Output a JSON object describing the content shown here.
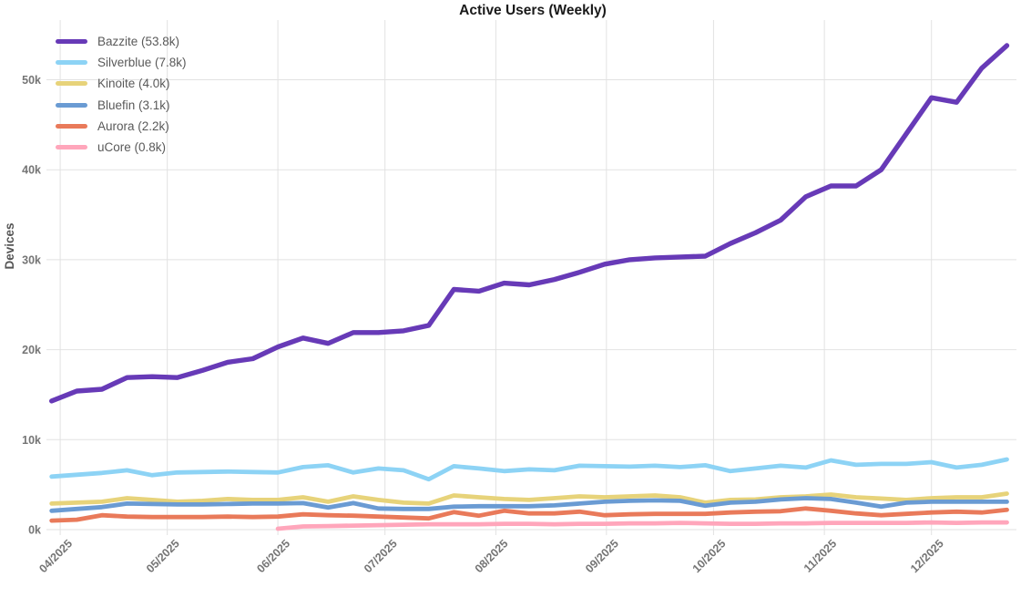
{
  "chart_data": {
    "type": "line",
    "title": "Active Users (Weekly)",
    "xlabel": "",
    "ylabel": "Devices",
    "frequency": "weekly",
    "grid": true,
    "legend_position": "top-left",
    "ylim": [
      0,
      56
    ],
    "y_ticks": [
      "0k",
      "10k",
      "20k",
      "30k",
      "40k",
      "50k"
    ],
    "y_tick_values": [
      0,
      10,
      20,
      30,
      40,
      50
    ],
    "x_ticks": [
      "04/2025",
      "05/2025",
      "06/2025",
      "07/2025",
      "08/2025",
      "09/2025",
      "10/2025",
      "11/2025",
      "12/2025"
    ],
    "x_tick_week_positions": [
      0.34,
      4.6,
      9.0,
      13.26,
      17.67,
      22.07,
      26.33,
      30.74,
      35.0
    ],
    "n_points": 39,
    "units": "thousands of devices",
    "series": [
      {
        "name": "Bazzite",
        "legend_label": "Bazzite (53.8k)",
        "final_value": "53.8k",
        "color": "#673ab7",
        "z": 6,
        "values": [
          14.3,
          15.4,
          15.6,
          16.9,
          17.0,
          16.9,
          17.7,
          18.6,
          19.0,
          20.3,
          21.3,
          20.7,
          21.9,
          21.9,
          22.1,
          22.7,
          26.7,
          26.5,
          27.4,
          27.2,
          27.8,
          28.6,
          29.5,
          30.0,
          30.2,
          30.3,
          30.4,
          31.8,
          33.0,
          34.4,
          37.0,
          38.2,
          38.2,
          40.0,
          44.0,
          48.0,
          47.5,
          51.3,
          53.8
        ]
      },
      {
        "name": "Silverblue",
        "legend_label": "Silverblue (7.8k)",
        "final_value": "7.8k",
        "color": "#8dd3f5",
        "z": 5,
        "values": [
          5.9,
          6.1,
          6.3,
          6.6,
          6.05,
          6.35,
          6.4,
          6.45,
          6.4,
          6.35,
          6.95,
          7.15,
          6.35,
          6.8,
          6.6,
          5.6,
          7.05,
          6.8,
          6.5,
          6.7,
          6.6,
          7.1,
          7.05,
          7.0,
          7.1,
          6.95,
          7.15,
          6.5,
          6.8,
          7.1,
          6.9,
          7.7,
          7.2,
          7.3,
          7.3,
          7.5,
          6.9,
          7.2,
          7.8
        ]
      },
      {
        "name": "Kinoite",
        "legend_label": "Kinoite (4.0k)",
        "final_value": "4.0k",
        "color": "#e7d37a",
        "z": 3,
        "values": [
          2.9,
          3.0,
          3.1,
          3.5,
          3.3,
          3.1,
          3.2,
          3.4,
          3.3,
          3.3,
          3.6,
          3.1,
          3.7,
          3.3,
          3.0,
          2.9,
          3.8,
          3.6,
          3.4,
          3.3,
          3.5,
          3.7,
          3.6,
          3.7,
          3.8,
          3.6,
          3.0,
          3.3,
          3.35,
          3.6,
          3.7,
          3.9,
          3.6,
          3.45,
          3.3,
          3.5,
          3.6,
          3.6,
          4.0
        ]
      },
      {
        "name": "Bluefin",
        "legend_label": "Bluefin (3.1k)",
        "final_value": "3.1k",
        "color": "#6a9bd3",
        "z": 4,
        "values": [
          2.1,
          2.3,
          2.5,
          2.9,
          2.85,
          2.8,
          2.8,
          2.85,
          2.9,
          2.9,
          2.95,
          2.45,
          2.95,
          2.35,
          2.3,
          2.3,
          2.55,
          2.6,
          2.6,
          2.6,
          2.7,
          2.9,
          3.1,
          3.2,
          3.25,
          3.2,
          2.65,
          3.0,
          3.1,
          3.35,
          3.5,
          3.4,
          3.0,
          2.55,
          3.0,
          3.1,
          3.1,
          3.1,
          3.1
        ]
      },
      {
        "name": "Aurora",
        "legend_label": "Aurora (2.2k)",
        "final_value": "2.2k",
        "color": "#e97a5a",
        "z": 2,
        "values": [
          1.0,
          1.1,
          1.6,
          1.45,
          1.4,
          1.4,
          1.4,
          1.45,
          1.4,
          1.45,
          1.7,
          1.6,
          1.55,
          1.45,
          1.35,
          1.25,
          1.95,
          1.55,
          2.1,
          1.8,
          1.8,
          2.0,
          1.6,
          1.7,
          1.75,
          1.75,
          1.75,
          1.9,
          2.0,
          2.05,
          2.35,
          2.1,
          1.8,
          1.6,
          1.75,
          1.9,
          2.0,
          1.9,
          2.2
        ]
      },
      {
        "name": "uCore",
        "legend_label": "uCore (0.8k)",
        "final_value": "0.8k",
        "color": "#ffa6bb",
        "z": 1,
        "values": [
          null,
          null,
          null,
          null,
          null,
          null,
          null,
          null,
          null,
          0.1,
          0.35,
          0.4,
          0.45,
          0.5,
          0.55,
          0.6,
          0.6,
          0.6,
          0.65,
          0.65,
          0.6,
          0.65,
          0.65,
          0.7,
          0.7,
          0.75,
          0.7,
          0.65,
          0.65,
          0.7,
          0.7,
          0.75,
          0.75,
          0.75,
          0.75,
          0.8,
          0.75,
          0.8,
          0.8
        ]
      }
    ]
  },
  "colors": {
    "background": "#ffffff",
    "gridline": "#e2e2e2",
    "tick_text": "#757575",
    "title_text": "#1a1a1a",
    "legend_text": "#595959"
  }
}
